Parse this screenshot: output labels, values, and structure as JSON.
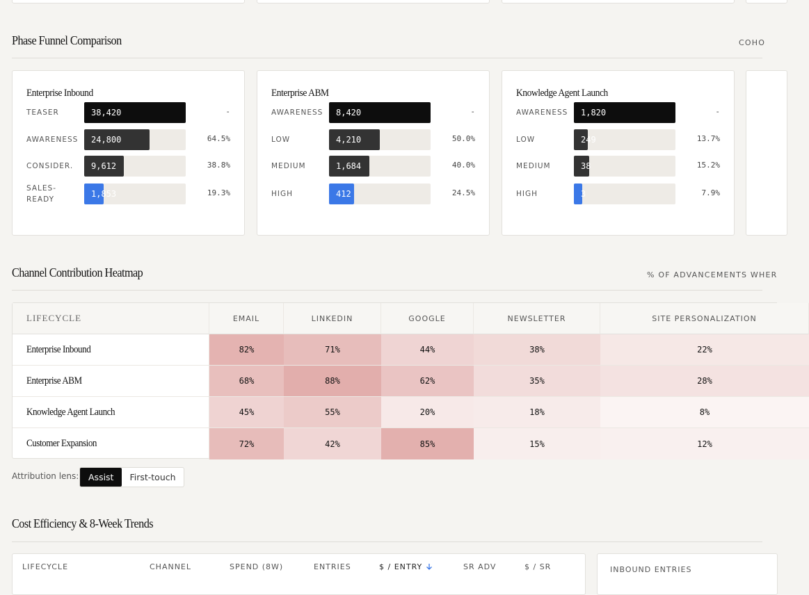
{
  "funnel": {
    "title": "Phase Funnel Comparison",
    "note": "COHO",
    "cards": [
      {
        "title": "Enterprise Inbound",
        "rows": [
          {
            "stage": "TEASER",
            "count": "38,420",
            "share": null,
            "share_label": "-"
          },
          {
            "stage": "AWARENESS",
            "count": "24,800",
            "share": 64.5,
            "share_label": "64.5%"
          },
          {
            "stage": "CONSIDER.",
            "count": "9,612",
            "share": 38.8,
            "share_label": "38.8%"
          },
          {
            "stage": "SALES-READY",
            "count": "1,853",
            "share": 19.3,
            "share_label": "19.3%"
          }
        ]
      },
      {
        "title": "Enterprise ABM",
        "rows": [
          {
            "stage": "AWARENESS",
            "count": "8,420",
            "share": null,
            "share_label": "-"
          },
          {
            "stage": "LOW",
            "count": "4,210",
            "share": 50.0,
            "share_label": "50.0%"
          },
          {
            "stage": "MEDIUM",
            "count": "1,684",
            "share": 40.0,
            "share_label": "40.0%"
          },
          {
            "stage": "HIGH",
            "count": "412",
            "share": 24.5,
            "share_label": "24.5%"
          }
        ]
      },
      {
        "title": "Knowledge Agent Launch",
        "rows": [
          {
            "stage": "AWARENESS",
            "count": "1,820",
            "share": null,
            "share_label": "-"
          },
          {
            "stage": "LOW",
            "count": "249",
            "share": 13.7,
            "share_label": "13.7%"
          },
          {
            "stage": "MEDIUM",
            "count": "38",
            "share": 15.2,
            "share_label": "15.2%"
          },
          {
            "stage": "HIGH",
            "count": "3",
            "share": 7.9,
            "share_label": "7.9%"
          }
        ]
      }
    ]
  },
  "heatmap": {
    "title": "Channel Contribution Heatmap",
    "note": "% OF ADVANCEMENTS WHER",
    "columns": [
      "LIFECYCLE",
      "EMAIL",
      "LINKEDIN",
      "GOOGLE",
      "NEWSLETTER",
      "SITE PERSONALIZATION"
    ],
    "rows": [
      {
        "lifecycle": "Enterprise Inbound",
        "values": [
          82,
          71,
          44,
          38,
          22
        ],
        "labels": [
          "82%",
          "71%",
          "44%",
          "38%",
          "22%"
        ]
      },
      {
        "lifecycle": "Enterprise ABM",
        "values": [
          68,
          88,
          62,
          35,
          28
        ],
        "labels": [
          "68%",
          "88%",
          "62%",
          "35%",
          "28%"
        ]
      },
      {
        "lifecycle": "Knowledge Agent Launch",
        "values": [
          45,
          55,
          20,
          18,
          8
        ],
        "labels": [
          "45%",
          "55%",
          "20%",
          "18%",
          "8%"
        ]
      },
      {
        "lifecycle": "Customer Expansion",
        "values": [
          72,
          42,
          85,
          15,
          12
        ],
        "labels": [
          "72%",
          "42%",
          "85%",
          "15%",
          "12%"
        ]
      }
    ]
  },
  "attribution": {
    "label": "Attribution lens:",
    "options": [
      "Assist",
      "First-touch"
    ],
    "active": 0
  },
  "cost": {
    "title": "Cost Efficiency & 8-Week Trends",
    "columns": [
      "LIFECYCLE",
      "CHANNEL",
      "SPEND (8W)",
      "ENTRIES",
      "$ / ENTRY",
      "SR ADV",
      "$ / SR"
    ],
    "sort_column": 4,
    "side_card": "INBOUND ENTRIES"
  }
}
